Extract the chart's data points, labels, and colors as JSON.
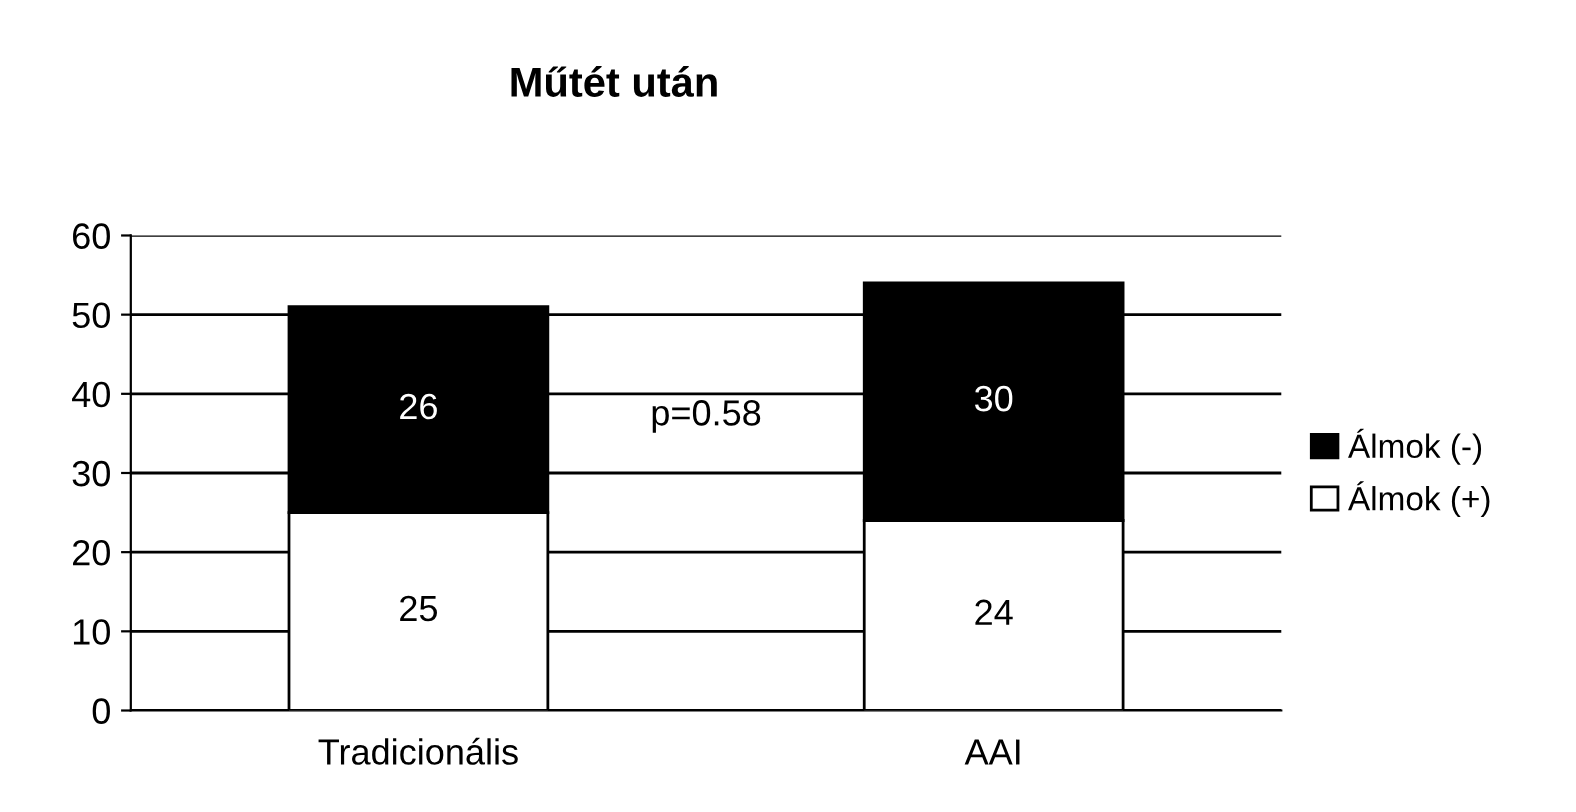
{
  "chart_data": {
    "type": "bar",
    "title": "Műtét után",
    "categories": [
      "Tradicionális",
      "AAI"
    ],
    "stacked": true,
    "series": [
      {
        "name": "Álmok (+)",
        "color": "#ffffff",
        "values": [
          25,
          24
        ]
      },
      {
        "name": "Álmok (-)",
        "color": "#000000",
        "values": [
          26,
          30
        ]
      }
    ],
    "ylim": [
      0,
      60
    ],
    "yticks": [
      0,
      10,
      20,
      30,
      40,
      50,
      60
    ],
    "grid": "y",
    "legend": "right",
    "data_labels": true,
    "annotations": [
      "p=0.58"
    ]
  }
}
